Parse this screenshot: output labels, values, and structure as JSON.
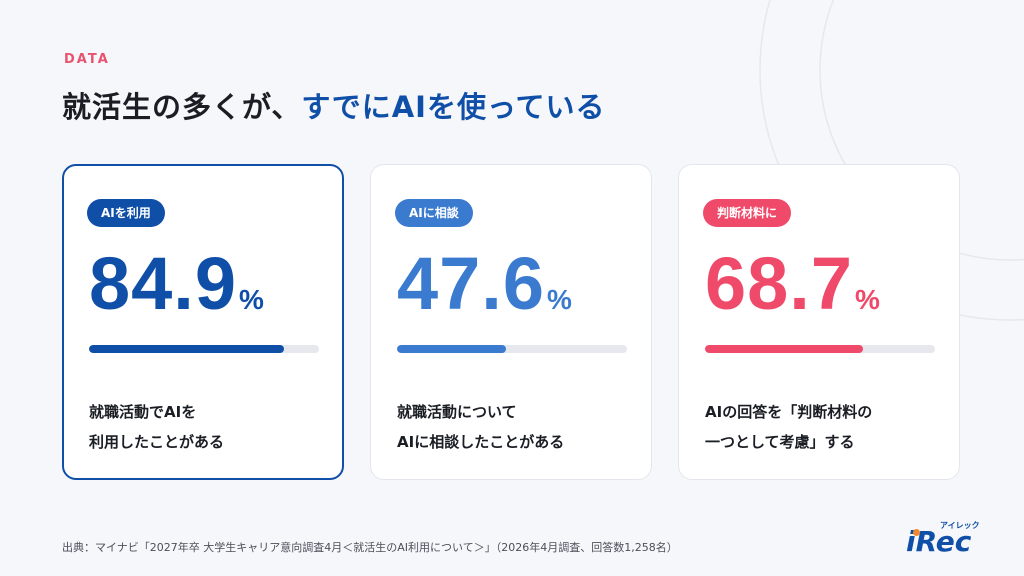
{
  "eyebrow": "DATA",
  "headline": {
    "part1": "就活生の多くが、",
    "part2": "すでにAIを使っている"
  },
  "colors": {
    "navy": "#0f4fa8",
    "blue": "#3a7bd0",
    "pink": "#f04a6a",
    "eyebrow": "#e8546f",
    "track": "#e6e8ee"
  },
  "cards": [
    {
      "badge": "AIを利用",
      "value": "84.9",
      "unit": "%",
      "fraction": 0.849,
      "color": "#0f4fa8",
      "lines": [
        "就職活動でAIを",
        "利用したことがある"
      ]
    },
    {
      "badge": "AIに相談",
      "value": "47.6",
      "unit": "%",
      "fraction": 0.476,
      "color": "#3a7bd0",
      "lines": [
        "就職活動について",
        "AIに相談したことがある"
      ]
    },
    {
      "badge": "判断材料に",
      "value": "68.7",
      "unit": "%",
      "fraction": 0.687,
      "color": "#f04a6a",
      "lines": [
        "AIの回答を「判断材料の",
        "一つとして考慮」する"
      ]
    }
  ],
  "source": "出典：マイナビ「2027年卒 大学生キャリア意向調査4月＜就活生のAI利用について＞」（2026年4月調査、回答数1,258名）",
  "logo": {
    "kana": "アイレック",
    "word": "iRec"
  }
}
